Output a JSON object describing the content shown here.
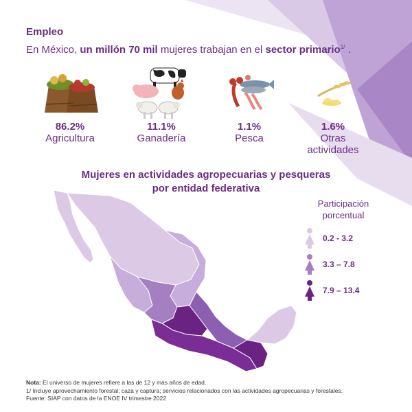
{
  "header": {
    "section_title": "Empleo",
    "headline_prefix": "En México,",
    "headline_bold": "un millón 70 mil",
    "headline_middle": "mujeres trabajan en el",
    "headline_sector": "sector primario",
    "headline_footnote": "1/",
    "headline_end": "."
  },
  "sectors": [
    {
      "percent": "86.2%",
      "label": "Agricultura",
      "icon": "produce-sacks-icon"
    },
    {
      "percent": "11.1%",
      "label": "Ganadería",
      "icon": "livestock-icon"
    },
    {
      "percent": "1.1%",
      "label": "Pesca",
      "icon": "seafood-icon"
    },
    {
      "percent": "1.6%",
      "label_line1": "Otras",
      "label_line2": "actividades",
      "icon": "grain-icon"
    }
  ],
  "map": {
    "title_line1": "Mujeres en actividades agropecuarias y pesqueras",
    "title_line2": "por entidad federativa"
  },
  "legend": {
    "title_line1": "Participación",
    "title_line2": "porcentual",
    "items": [
      {
        "range": "0.2 - 3.2",
        "color": "#dcc9e6"
      },
      {
        "range": "3.3 – 7.8",
        "color": "#a47fc1"
      },
      {
        "range": "7.9 – 13.4",
        "color": "#6a2283"
      }
    ]
  },
  "notes": {
    "note_label": "Nota:",
    "note_text": "El universo de mujeres refiere a las de 12 y más años de edad.",
    "footnote": "1/ Incluye aprovechamiento forestal; caza y captura; servicios relacionados con las actividades agropecuarias y forestales.",
    "source": "Fuente: SIAP con datos de la ENOE IV trimestre 2022"
  },
  "colors": {
    "brand_purple": "#6a2d86",
    "light": "#dcc9e6",
    "medium": "#a47fc1",
    "dark": "#6a2283"
  }
}
